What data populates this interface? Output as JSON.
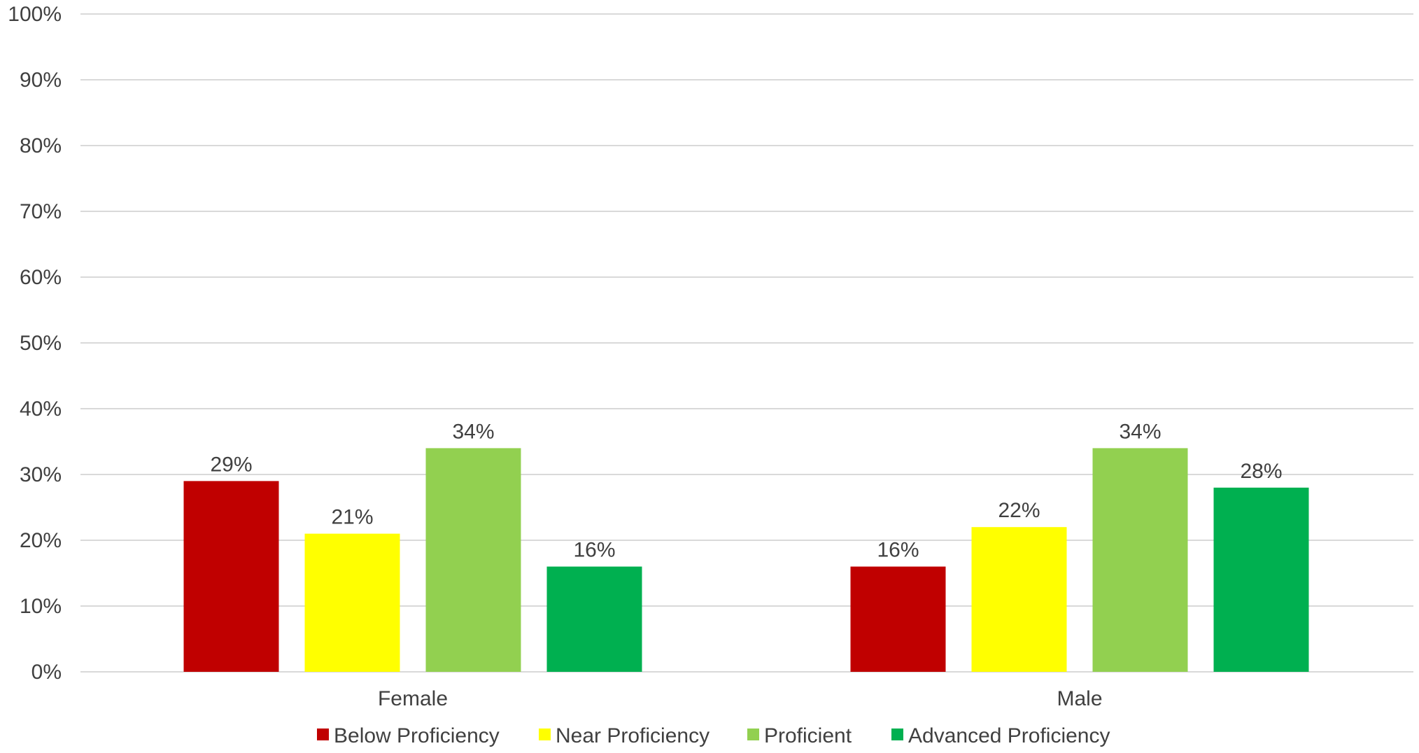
{
  "chart_data": {
    "type": "bar",
    "categories": [
      "Female",
      "Male"
    ],
    "series": [
      {
        "name": "Below Proficiency",
        "values": [
          29,
          16
        ],
        "color": "#c00000"
      },
      {
        "name": "Near Proficiency",
        "values": [
          21,
          22
        ],
        "color": "#ffff00"
      },
      {
        "name": "Proficient",
        "values": [
          34,
          34
        ],
        "color": "#92d050"
      },
      {
        "name": "Advanced Proficiency",
        "values": [
          16,
          28
        ],
        "color": "#00b050"
      }
    ],
    "data_labels": [
      [
        "29%",
        "16%"
      ],
      [
        "21%",
        "22%"
      ],
      [
        "34%",
        "34%"
      ],
      [
        "16%",
        "28%"
      ]
    ],
    "y_ticks": [
      "0%",
      "10%",
      "20%",
      "30%",
      "40%",
      "50%",
      "60%",
      "70%",
      "80%",
      "90%",
      "100%"
    ],
    "ylim": [
      0,
      100
    ],
    "grid": true,
    "legend_position": "bottom"
  }
}
